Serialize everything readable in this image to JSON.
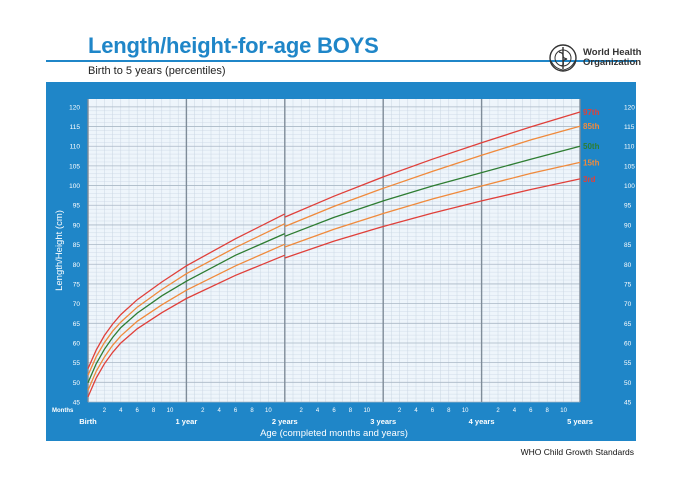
{
  "header": {
    "title": "Length/height-for-age BOYS",
    "subtitle": "Birth to 5 years (percentiles)",
    "logo_text": [
      "World Health",
      "Organization"
    ],
    "logo_icon": "who-emblem-icon"
  },
  "footer": {
    "source": "WHO Child Growth Standards"
  },
  "colors": {
    "panel": "#1f86c8",
    "plot_bg": "#eef5fb",
    "grid_minor": "#c9d6e3",
    "grid_year": "#7f8c99",
    "p97": "#e0403a",
    "p85": "#f08a3c",
    "p50": "#2e7d32",
    "p15": "#f08a3c",
    "p3": "#e0403a"
  },
  "chart_data": {
    "type": "line",
    "title": "Length/height-for-age BOYS",
    "subtitle": "Birth to 5 years (percentiles)",
    "xlabel": "Age (completed months and years)",
    "ylabel": "Length/Height (cm)",
    "xlim": [
      0,
      60
    ],
    "ylim": [
      45,
      122
    ],
    "grid": true,
    "months_label": "Months",
    "month_ticks": [
      {
        "x": 2,
        "label": "2"
      },
      {
        "x": 4,
        "label": "4"
      },
      {
        "x": 6,
        "label": "6"
      },
      {
        "x": 8,
        "label": "8"
      },
      {
        "x": 10,
        "label": "10"
      },
      {
        "x": 14,
        "label": "2"
      },
      {
        "x": 16,
        "label": "4"
      },
      {
        "x": 18,
        "label": "6"
      },
      {
        "x": 20,
        "label": "8"
      },
      {
        "x": 22,
        "label": "10"
      },
      {
        "x": 26,
        "label": "2"
      },
      {
        "x": 28,
        "label": "4"
      },
      {
        "x": 30,
        "label": "6"
      },
      {
        "x": 32,
        "label": "8"
      },
      {
        "x": 34,
        "label": "10"
      },
      {
        "x": 38,
        "label": "2"
      },
      {
        "x": 40,
        "label": "4"
      },
      {
        "x": 42,
        "label": "6"
      },
      {
        "x": 44,
        "label": "8"
      },
      {
        "x": 46,
        "label": "10"
      },
      {
        "x": 50,
        "label": "2"
      },
      {
        "x": 52,
        "label": "4"
      },
      {
        "x": 54,
        "label": "6"
      },
      {
        "x": 56,
        "label": "8"
      },
      {
        "x": 58,
        "label": "10"
      }
    ],
    "year_ticks": [
      {
        "x": 0,
        "label": "Birth"
      },
      {
        "x": 12,
        "label": "1 year"
      },
      {
        "x": 24,
        "label": "2 years"
      },
      {
        "x": 36,
        "label": "3 years"
      },
      {
        "x": 48,
        "label": "4 years"
      },
      {
        "x": 60,
        "label": "5 years"
      }
    ],
    "y_ticks": [
      45,
      50,
      55,
      60,
      65,
      70,
      75,
      80,
      85,
      90,
      95,
      100,
      105,
      110,
      115,
      120
    ],
    "x": [
      0,
      1,
      2,
      3,
      4,
      6,
      9,
      12,
      18,
      24,
      24,
      30,
      36,
      42,
      48,
      54,
      60
    ],
    "series": [
      {
        "name": "97th",
        "color": "#e0403a",
        "values": [
          53.5,
          58.2,
          61.9,
          64.8,
          67.2,
          71.0,
          75.5,
          79.6,
          86.5,
          92.8,
          92.0,
          97.3,
          102.2,
          106.7,
          110.9,
          114.9,
          118.7
        ]
      },
      {
        "name": "85th",
        "color": "#f08a3c",
        "values": [
          51.8,
          56.5,
          60.1,
          63.0,
          65.3,
          69.1,
          73.6,
          77.6,
          84.3,
          90.3,
          89.6,
          94.7,
          99.3,
          103.6,
          107.7,
          111.6,
          115.1
        ]
      },
      {
        "name": "50th",
        "color": "#2e7d32",
        "values": [
          49.9,
          54.7,
          58.4,
          61.4,
          63.9,
          67.6,
          72.0,
          75.7,
          82.3,
          87.8,
          87.1,
          91.9,
          96.1,
          99.9,
          103.3,
          106.7,
          110.0
        ]
      },
      {
        "name": "15th",
        "color": "#f08a3c",
        "values": [
          48.0,
          52.8,
          56.4,
          59.4,
          61.8,
          65.5,
          69.7,
          73.4,
          79.6,
          85.1,
          84.4,
          88.9,
          92.9,
          96.6,
          99.9,
          103.1,
          105.9
        ]
      },
      {
        "name": "3rd",
        "color": "#e0403a",
        "values": [
          46.3,
          51.1,
          54.7,
          57.6,
          60.0,
          63.6,
          67.7,
          71.3,
          77.2,
          82.3,
          81.6,
          85.9,
          89.6,
          93.0,
          96.1,
          99.0,
          101.7
        ]
      }
    ]
  }
}
